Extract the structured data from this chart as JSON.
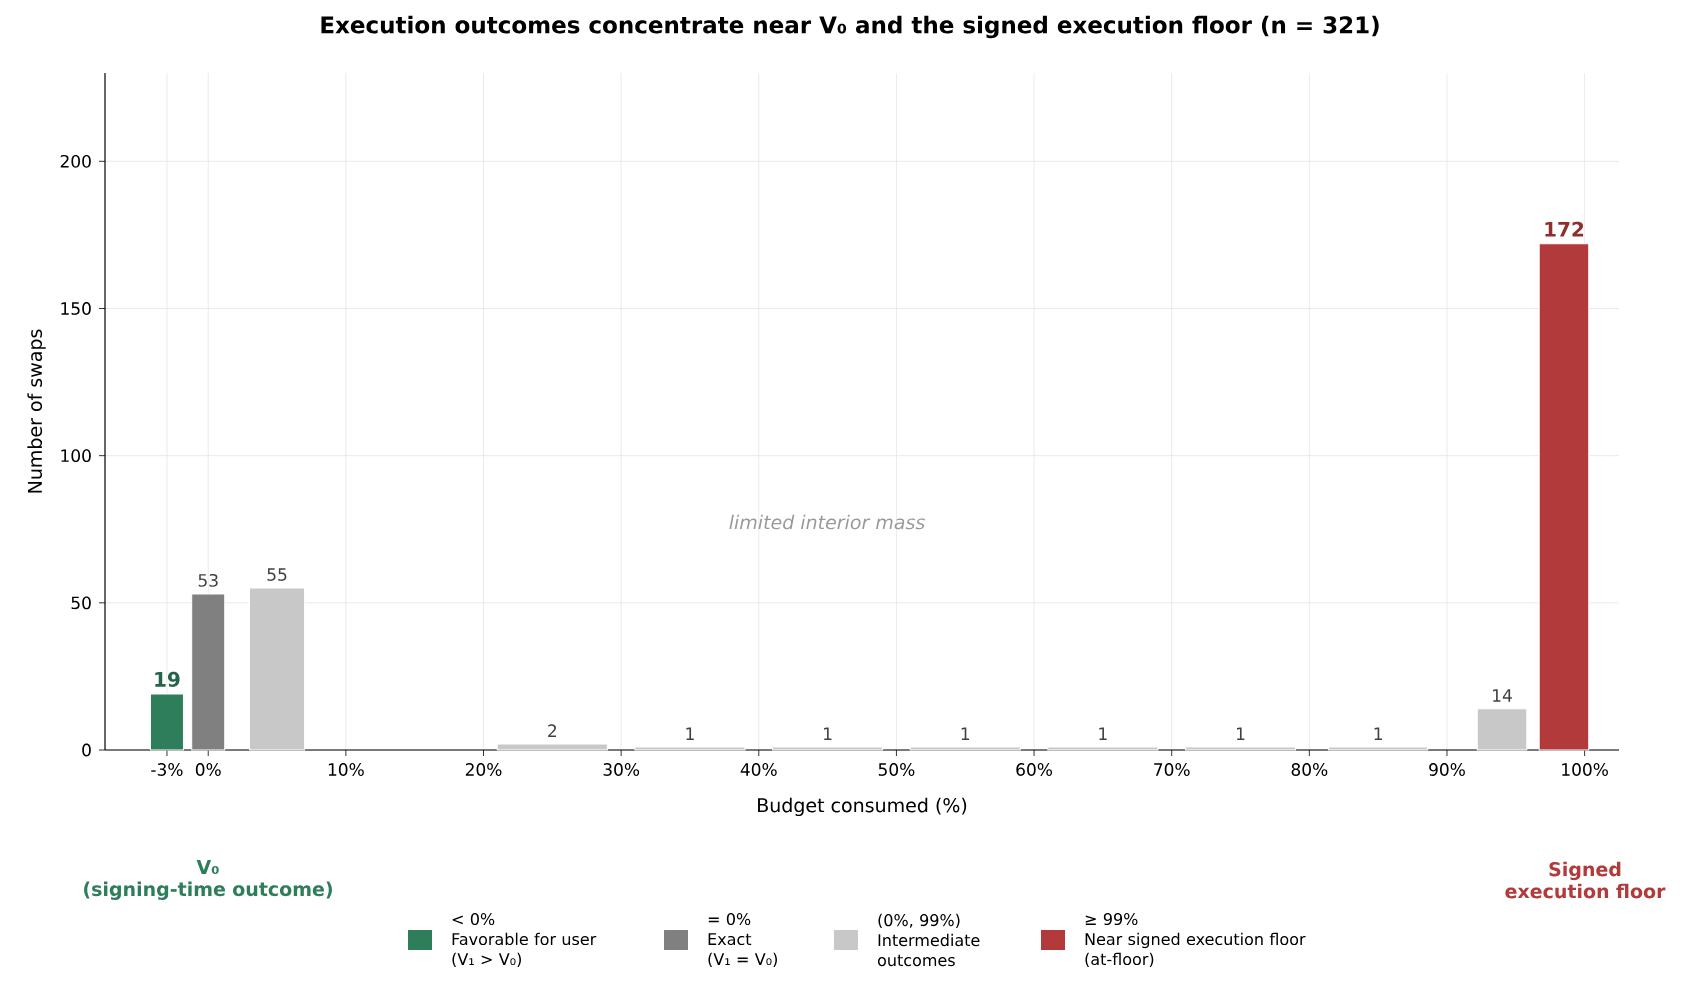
{
  "chart_data": {
    "type": "bar",
    "title": "Execution outcomes concentrate near V₀ and the signed execution floor (n = 321)",
    "xlabel": "Budget consumed (%)",
    "ylabel": "Number of swaps",
    "series": [
      {
        "name": "< 0%\nFavorable for user\n(V₁ > V₀)",
        "color": "#2e7d5b",
        "x": [
          -3
        ],
        "values": [
          19
        ]
      },
      {
        "name": "= 0%\nExact\n(V₁ = V₀)",
        "color": "#808080",
        "x": [
          0
        ],
        "values": [
          53
        ]
      },
      {
        "name": "(0%, 99%)\nIntermediate\noutcomes",
        "color": "#c8c8c8",
        "x": [
          5,
          25,
          35,
          45,
          55,
          65,
          75,
          85,
          94
        ],
        "values": [
          55,
          2,
          1,
          1,
          1,
          1,
          1,
          1,
          14
        ]
      },
      {
        "name": "≥ 99%\nNear signed execution floor\n(at-floor)",
        "color": "#b33a3a",
        "x": [
          98.5
        ],
        "values": [
          172
        ]
      }
    ],
    "xlim": [
      -7.5,
      102.5
    ],
    "ylim": [
      0,
      230
    ],
    "xticks": [
      {
        "value": -3,
        "label": "-3%"
      },
      {
        "value": 0,
        "label": "0%"
      },
      {
        "value": 10,
        "label": "10%"
      },
      {
        "value": 20,
        "label": "20%"
      },
      {
        "value": 30,
        "label": "30%"
      },
      {
        "value": 40,
        "label": "40%"
      },
      {
        "value": 50,
        "label": "50%"
      },
      {
        "value": 60,
        "label": "60%"
      },
      {
        "value": 70,
        "label": "70%"
      },
      {
        "value": 80,
        "label": "80%"
      },
      {
        "value": 90,
        "label": "90%"
      },
      {
        "value": 100,
        "label": "100%"
      }
    ],
    "yticks": [
      0,
      50,
      100,
      150,
      200
    ],
    "grid": true,
    "legend": "bottom",
    "data_labels": true,
    "annotations": [
      "limited interior mass",
      "V₀\n(signing-time outcome)",
      "Signed execution floor"
    ]
  }
}
